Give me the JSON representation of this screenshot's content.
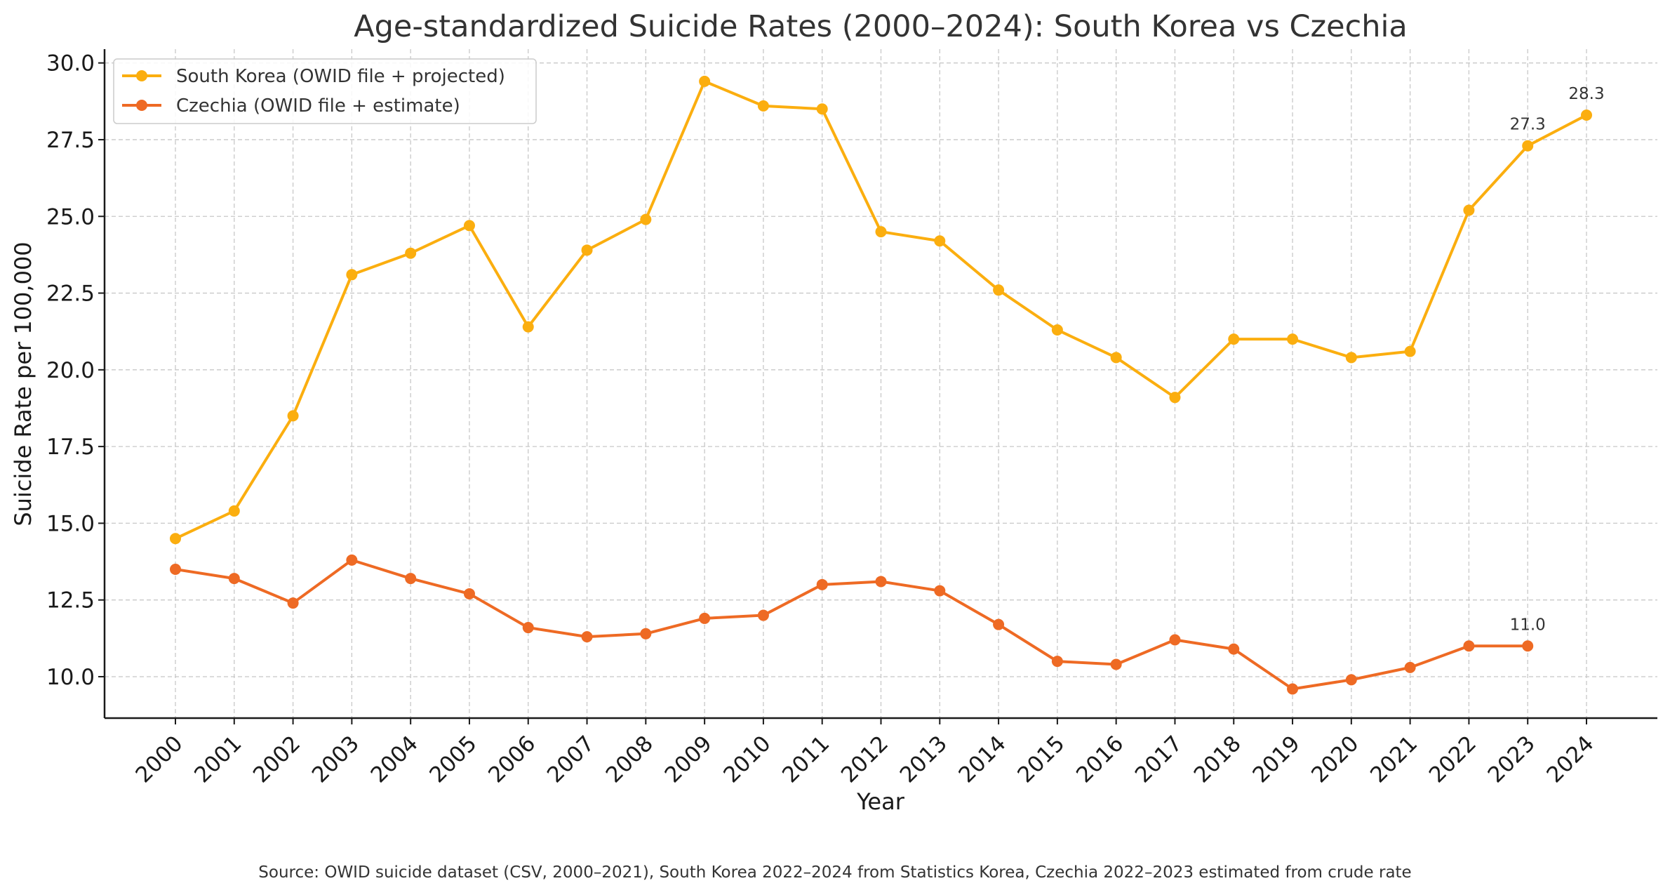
{
  "chart_data": {
    "type": "line",
    "title": "Age-standardized Suicide Rates (2000–2024): South Korea vs Czechia",
    "xlabel": "Year",
    "ylabel": "Suicide Rate per 100,000",
    "x": [
      2000,
      2001,
      2002,
      2003,
      2004,
      2005,
      2006,
      2007,
      2008,
      2009,
      2010,
      2011,
      2012,
      2013,
      2014,
      2015,
      2016,
      2017,
      2018,
      2019,
      2020,
      2021,
      2022,
      2023,
      2024
    ],
    "x_tick_labels": [
      "2000",
      "2001",
      "2002",
      "2003",
      "2004",
      "2005",
      "2006",
      "2007",
      "2008",
      "2009",
      "2010",
      "2011",
      "2012",
      "2013",
      "2014",
      "2015",
      "2016",
      "2017",
      "2018",
      "2019",
      "2020",
      "2021",
      "2022",
      "2023",
      "2024"
    ],
    "ylim": [
      8.65,
      30.45
    ],
    "y_ticks": [
      10.0,
      12.5,
      15.0,
      17.5,
      20.0,
      22.5,
      25.0,
      27.5,
      30.0
    ],
    "y_tick_labels": [
      "10.0",
      "12.5",
      "15.0",
      "17.5",
      "20.0",
      "22.5",
      "25.0",
      "27.5",
      "30.0"
    ],
    "grid": true,
    "legend_position": "top-left",
    "series": [
      {
        "name": "South Korea (OWID file + projected)",
        "color": "#FBAE0F",
        "x": [
          2000,
          2001,
          2002,
          2003,
          2004,
          2005,
          2006,
          2007,
          2008,
          2009,
          2010,
          2011,
          2012,
          2013,
          2014,
          2015,
          2016,
          2017,
          2018,
          2019,
          2020,
          2021,
          2022,
          2023,
          2024
        ],
        "values": [
          14.5,
          15.4,
          18.5,
          23.1,
          23.8,
          24.7,
          21.4,
          23.9,
          24.9,
          29.4,
          28.6,
          28.5,
          24.5,
          24.2,
          22.6,
          21.3,
          20.4,
          19.1,
          21.0,
          21.0,
          20.4,
          20.6,
          25.2,
          27.3,
          28.3
        ]
      },
      {
        "name": "Czechia (OWID file + estimate)",
        "color": "#EE6A24",
        "x": [
          2000,
          2001,
          2002,
          2003,
          2004,
          2005,
          2006,
          2007,
          2008,
          2009,
          2010,
          2011,
          2012,
          2013,
          2014,
          2015,
          2016,
          2017,
          2018,
          2019,
          2020,
          2021,
          2022,
          2023
        ],
        "values": [
          13.5,
          13.2,
          12.4,
          13.8,
          13.2,
          12.7,
          11.6,
          11.3,
          11.4,
          11.9,
          12.0,
          13.0,
          13.1,
          12.8,
          11.7,
          10.5,
          10.4,
          11.2,
          10.9,
          9.6,
          9.9,
          10.3,
          11.0,
          11.0
        ]
      }
    ],
    "annotations": [
      {
        "series": 0,
        "x": 2023,
        "text": "27.3"
      },
      {
        "series": 0,
        "x": 2024,
        "text": "28.3"
      },
      {
        "series": 1,
        "x": 2023,
        "text": "11.0"
      }
    ],
    "source_note": "Source: OWID suicide dataset (CSV, 2000–2021), South Korea 2022–2024 from Statistics Korea, Czechia 2022–2023 estimated from crude rate"
  }
}
